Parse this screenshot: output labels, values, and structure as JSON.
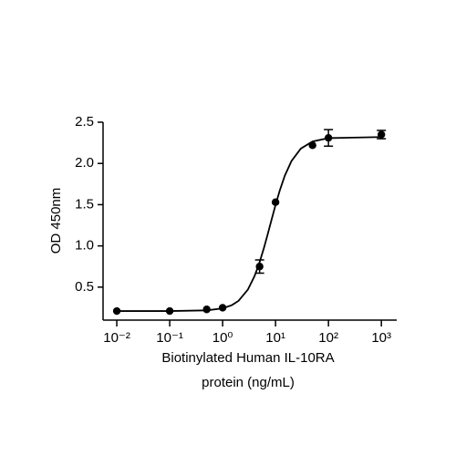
{
  "chart_data": {
    "type": "scatter",
    "ylabel": "OD 450nm",
    "xlabel": [
      "Biotinylated Human IL-10RA",
      "protein (ng/mL)"
    ],
    "x": [
      0.01,
      0.1,
      0.5,
      1,
      5,
      10,
      50,
      100,
      1000
    ],
    "values": [
      0.21,
      0.21,
      0.23,
      0.25,
      0.75,
      1.53,
      2.22,
      2.31,
      2.35
    ],
    "errors": [
      0,
      0,
      0,
      0,
      0.08,
      0,
      0,
      0.1,
      0.05
    ],
    "color": "#000000",
    "curve": {
      "x": [
        0.01,
        0.1,
        0.5,
        1,
        1.5,
        2,
        3,
        4,
        5,
        6,
        7,
        8,
        10,
        12,
        15,
        20,
        30,
        50,
        100,
        1000
      ],
      "values": [
        0.21,
        0.21,
        0.218,
        0.242,
        0.282,
        0.334,
        0.47,
        0.632,
        0.803,
        0.97,
        1.125,
        1.265,
        1.497,
        1.671,
        1.853,
        2.029,
        2.18,
        2.267,
        2.307,
        2.32
      ]
    },
    "xscale": "log",
    "xlim": [
      0.0055,
      1950
    ],
    "xticks": [
      {
        "value": 0.01,
        "label": "10⁻²"
      },
      {
        "value": 0.1,
        "label": "10⁻¹"
      },
      {
        "value": 1,
        "label": "10⁰"
      },
      {
        "value": 10,
        "label": "10¹"
      },
      {
        "value": 100,
        "label": "10²"
      },
      {
        "value": 1000,
        "label": "10³"
      }
    ],
    "ylim": [
      0.1,
      2.5
    ],
    "yticks": [
      0.5,
      {
        "value": 1.0,
        "label": "1.0"
      },
      1.5,
      {
        "value": 2.0,
        "label": "2.0"
      },
      2.5
    ]
  }
}
